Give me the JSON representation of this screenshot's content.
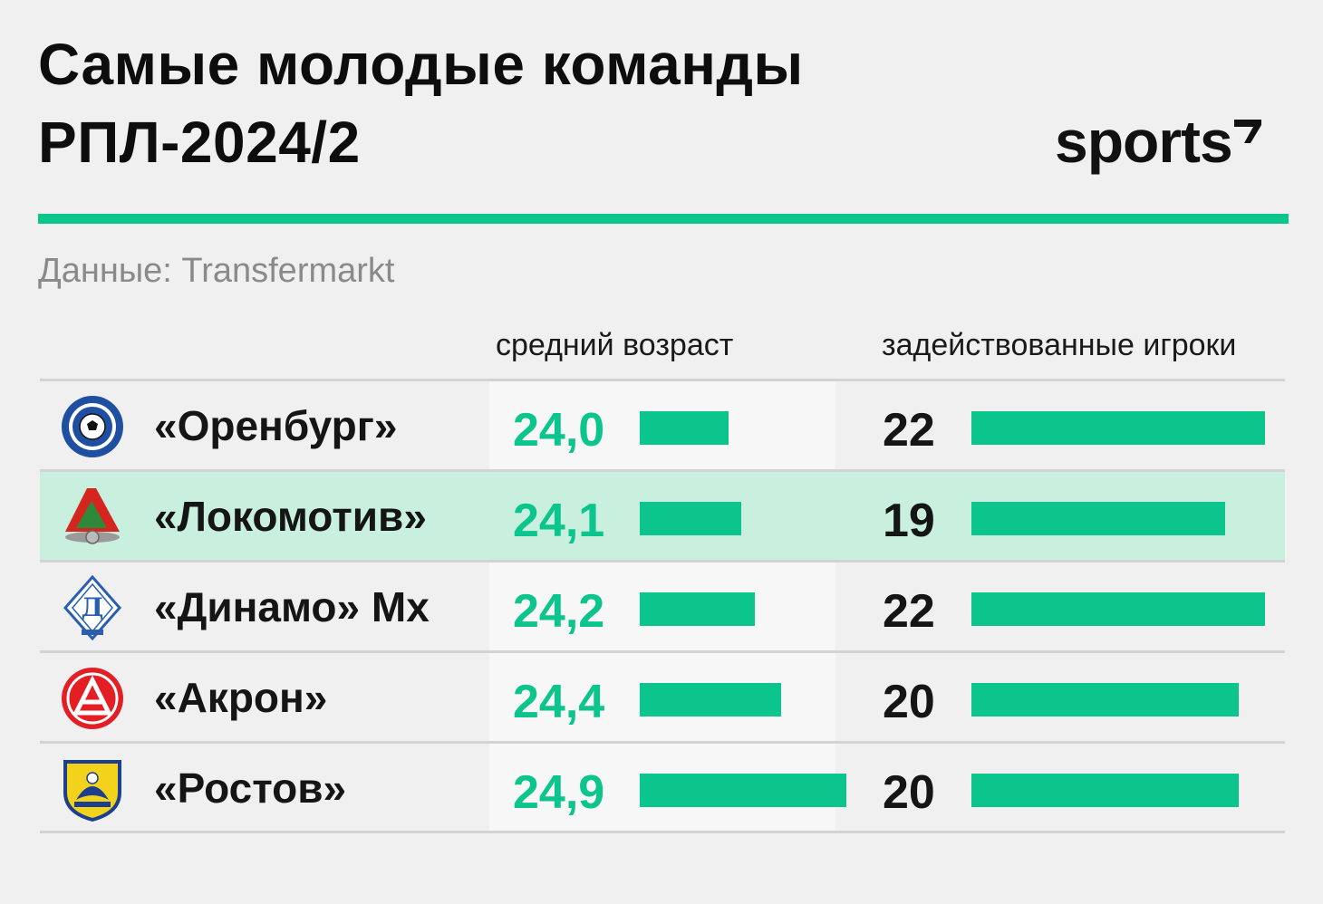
{
  "title_line1": "Самые молодые команды",
  "title_line2": "РПЛ-2024/2",
  "brand": "sports",
  "source": "Данные: Transfermarkt",
  "colors": {
    "accent": "#0cc58c",
    "highlight_row": "#c9f0de"
  },
  "chart_data": {
    "type": "table",
    "columns": [
      "средний возраст",
      "задействованные игроки"
    ],
    "rows": [
      {
        "team": "«Оренбург»",
        "logo": "orenburg-logo-icon",
        "age_label": "24,0",
        "age": 24.0,
        "players_label": "22",
        "players": 22,
        "highlighted": false
      },
      {
        "team": "«Локомотив»",
        "logo": "lokomotiv-logo-icon",
        "age_label": "24,1",
        "age": 24.1,
        "players_label": "19",
        "players": 19,
        "highlighted": true
      },
      {
        "team": "«Динамо» Мх",
        "logo": "dynamo-logo-icon",
        "age_label": "24,2",
        "age": 24.2,
        "players_label": "22",
        "players": 22,
        "highlighted": false
      },
      {
        "team": "«Акрон»",
        "logo": "akron-logo-icon",
        "age_label": "24,4",
        "age": 24.4,
        "players_label": "20",
        "players": 20,
        "highlighted": false
      },
      {
        "team": "«Ростов»",
        "logo": "rostov-logo-icon",
        "age_label": "24,9",
        "age": 24.9,
        "players_label": "20",
        "players": 20,
        "highlighted": false
      }
    ]
  }
}
